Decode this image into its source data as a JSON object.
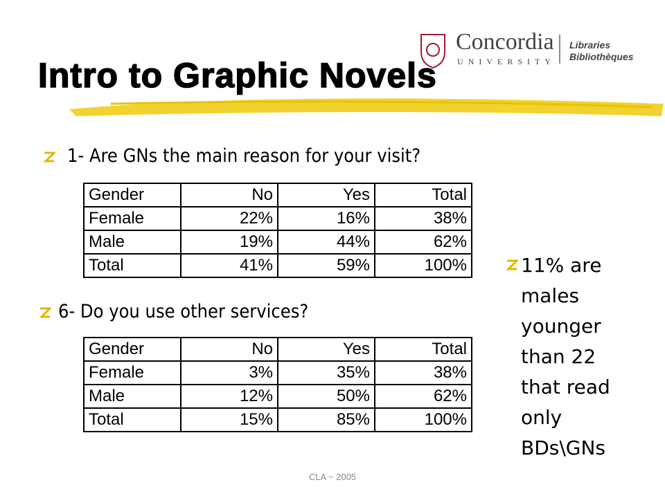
{
  "header": {
    "title": "Intro to Graphic Novels",
    "logo": {
      "name": "Concordia",
      "subname": "UNIVERSITY",
      "line1": "Libraries",
      "line2": "Bibliothèques"
    }
  },
  "sections": [
    {
      "question": "1- Are GNs the main reason for your visit?",
      "table": {
        "rows": [
          [
            "Gender",
            "No",
            "Yes",
            "Total"
          ],
          [
            "Female",
            "22%",
            "16%",
            "38%"
          ],
          [
            "Male",
            "19%",
            "44%",
            "62%"
          ],
          [
            "Total",
            "41%",
            "59%",
            "100%"
          ]
        ]
      }
    },
    {
      "question": "6- Do you use other services?",
      "table": {
        "rows": [
          [
            "Gender",
            "No",
            "Yes",
            "Total"
          ],
          [
            "Female",
            "3%",
            "35%",
            "38%"
          ],
          [
            "Male",
            "12%",
            "50%",
            "62%"
          ],
          [
            "Total",
            "15%",
            "85%",
            "100%"
          ]
        ]
      }
    }
  ],
  "note": "11% are males younger than 22 that read only BDs\\GNs",
  "footer": "CLA ~ 2005"
}
